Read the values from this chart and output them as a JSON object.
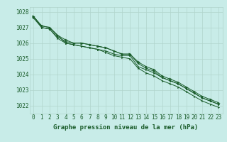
{
  "xlabel": "Graphe pression niveau de la mer (hPa)",
  "ylim": [
    1021.5,
    1028.3
  ],
  "xlim": [
    -0.5,
    23.5
  ],
  "yticks": [
    1022,
    1023,
    1024,
    1025,
    1026,
    1027,
    1028
  ],
  "xticks": [
    0,
    1,
    2,
    3,
    4,
    5,
    6,
    7,
    8,
    9,
    10,
    11,
    12,
    13,
    14,
    15,
    16,
    17,
    18,
    19,
    20,
    21,
    22,
    23
  ],
  "bg_color": "#c8ece8",
  "grid_color": "#b0d4cc",
  "line_color": "#1a5c2a",
  "series": [
    [
      1027.7,
      1027.1,
      1027.0,
      1026.5,
      1026.2,
      1026.0,
      1026.0,
      1025.9,
      1025.8,
      1025.7,
      1025.5,
      1025.3,
      1025.3,
      1024.8,
      1024.5,
      1024.3,
      1023.9,
      1023.7,
      1023.5,
      1023.2,
      1022.9,
      1022.6,
      1022.4,
      1022.2
    ],
    [
      1027.7,
      1027.1,
      1027.0,
      1026.5,
      1026.0,
      1025.9,
      1025.8,
      1025.7,
      1025.6,
      1025.5,
      1025.3,
      1025.2,
      1025.2,
      1024.5,
      1024.3,
      1024.1,
      1023.8,
      1023.6,
      1023.4,
      1023.1,
      1022.8,
      1022.5,
      1022.3,
      1022.1
    ],
    [
      1027.7,
      1027.0,
      1026.9,
      1026.4,
      1026.1,
      1026.0,
      1026.0,
      1025.9,
      1025.8,
      1025.7,
      1025.5,
      1025.3,
      1025.3,
      1024.7,
      1024.4,
      1024.2,
      1023.8,
      1023.6,
      1023.4,
      1023.1,
      1022.8,
      1022.5,
      1022.3,
      1022.1
    ],
    [
      1027.6,
      1027.0,
      1026.9,
      1026.3,
      1026.0,
      1025.9,
      1025.8,
      1025.7,
      1025.6,
      1025.4,
      1025.2,
      1025.1,
      1025.0,
      1024.4,
      1024.1,
      1023.9,
      1023.6,
      1023.4,
      1023.2,
      1022.9,
      1022.6,
      1022.3,
      1022.1,
      1021.9
    ]
  ],
  "marker_series": 0,
  "marker": ">",
  "marker_size": 2.5,
  "tick_fontsize": 5.5,
  "label_fontsize": 6.5,
  "linewidth": 0.7
}
